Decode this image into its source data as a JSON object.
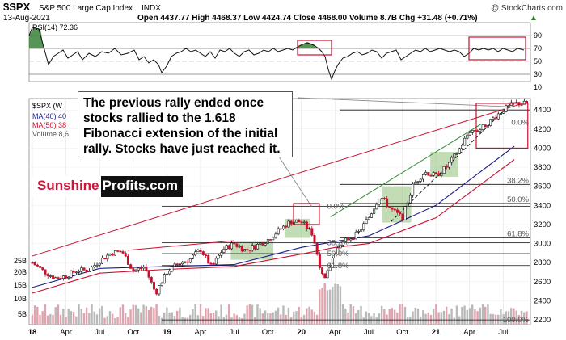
{
  "header": {
    "symbol": "$SPX",
    "name": "S&P 500 Large Cap Index",
    "exchange": "INDX",
    "watermark": "@ StockCharts.com",
    "date": "13-Aug-2021",
    "quote": "Open 4437.77  High 4468.37  Low 4424.74  Close 4468.00  Volume 8.7B  Chg +31.48 (+0.71%)",
    "arrow": "▲"
  },
  "rsi_panel": {
    "label": "RSI(14) 72.36",
    "levels": [
      "90",
      "70",
      "50",
      "30",
      "10"
    ],
    "color_line": "#000000",
    "color_fill": "#2d7a2d"
  },
  "legend": {
    "items": [
      {
        "key": "price",
        "text": "$SPX (W",
        "color": "#000000"
      },
      {
        "key": "ma40",
        "text": "MA(40) 40",
        "color": "#1a1a8c"
      },
      {
        "key": "ma50",
        "text": "MA(50) 38",
        "color": "#c8102e"
      },
      {
        "key": "volume",
        "text": "Volume 8,6",
        "color": "#999999"
      }
    ]
  },
  "callout": {
    "text": "The previous rally ended once stocks rallied to the 1.618 Fibonacci extension of the initial rally. Stocks have just reached it."
  },
  "logo": {
    "part1": "Sunshine",
    "part2": "Profits.com"
  },
  "fib_labels": [
    {
      "text": "0.0%",
      "y": 4230
    },
    {
      "text": "38.2%",
      "y": 3620
    },
    {
      "text": "50.0%",
      "y": 3420
    },
    {
      "text": "61.8%",
      "y": 3060
    }
  ],
  "fib_labels_2020": [
    {
      "text": "0.0%",
      "y": 3390
    },
    {
      "text": "38.2%",
      "y": 3010
    },
    {
      "text": "50.0%",
      "y": 2895
    },
    {
      "text": "61.8%",
      "y": 2770
    },
    {
      "text": "100.0%",
      "y": 2200
    }
  ],
  "chart_data": {
    "type": "line",
    "title": "$SPX S&P 500 Large Cap Index INDX",
    "timeframe": "weekly",
    "x_ticks": [
      "18",
      "Apr",
      "Jul",
      "Oct",
      "19",
      "Apr",
      "Jul",
      "Oct",
      "20",
      "Apr",
      "Jul",
      "Oct",
      "21",
      "Apr",
      "Jul"
    ],
    "y_ticks": [
      2200,
      2400,
      2600,
      2800,
      3000,
      3200,
      3400,
      3600,
      3800,
      4000,
      4200,
      4400
    ],
    "ylim": [
      2150,
      4520
    ],
    "volume_ticks": [
      "5B",
      "10B",
      "15B",
      "20B",
      "25B"
    ],
    "series": [
      {
        "name": "$SPX",
        "x": [
          "2018-01",
          "2018-02",
          "2018-03",
          "2018-04",
          "2018-05",
          "2018-06",
          "2018-07",
          "2018-08",
          "2018-09",
          "2018-10",
          "2018-11",
          "2018-12",
          "2019-01",
          "2019-02",
          "2019-03",
          "2019-04",
          "2019-05",
          "2019-06",
          "2019-07",
          "2019-08",
          "2019-09",
          "2019-10",
          "2019-11",
          "2019-12",
          "2020-01",
          "2020-02",
          "2020-03",
          "2020-04",
          "2020-05",
          "2020-06",
          "2020-07",
          "2020-08",
          "2020-09",
          "2020-10",
          "2020-11",
          "2020-12",
          "2021-01",
          "2021-02",
          "2021-03",
          "2021-04",
          "2021-05",
          "2021-06",
          "2021-07",
          "2021-08"
        ],
        "values": [
          2800,
          2710,
          2640,
          2660,
          2720,
          2720,
          2820,
          2900,
          2920,
          2710,
          2760,
          2480,
          2700,
          2790,
          2830,
          2940,
          2750,
          2940,
          3000,
          2930,
          2980,
          3040,
          3140,
          3230,
          3230,
          3100,
          2590,
          2910,
          3040,
          3100,
          3270,
          3500,
          3360,
          3270,
          3620,
          3750,
          3710,
          3810,
          3970,
          4180,
          4200,
          4300,
          4400,
          4468
        ]
      },
      {
        "name": "MA(40)",
        "x": [
          "2018-01",
          "2018-07",
          "2019-01",
          "2019-07",
          "2020-01",
          "2020-04",
          "2020-07",
          "2021-01",
          "2021-08"
        ],
        "values": [
          2540,
          2740,
          2760,
          2780,
          2960,
          3020,
          3080,
          3400,
          4020
        ]
      },
      {
        "name": "MA(50)",
        "x": [
          "2018-01",
          "2018-07",
          "2019-01",
          "2019-07",
          "2020-01",
          "2020-04",
          "2020-07",
          "2021-01",
          "2021-08"
        ],
        "values": [
          2480,
          2690,
          2730,
          2760,
          2890,
          2960,
          3000,
          3270,
          3880
        ]
      }
    ],
    "annotations": [
      "The previous rally ended once stocks rallied to the 1.618 Fibonacci extension of the initial rally. Stocks have just reached it."
    ]
  }
}
